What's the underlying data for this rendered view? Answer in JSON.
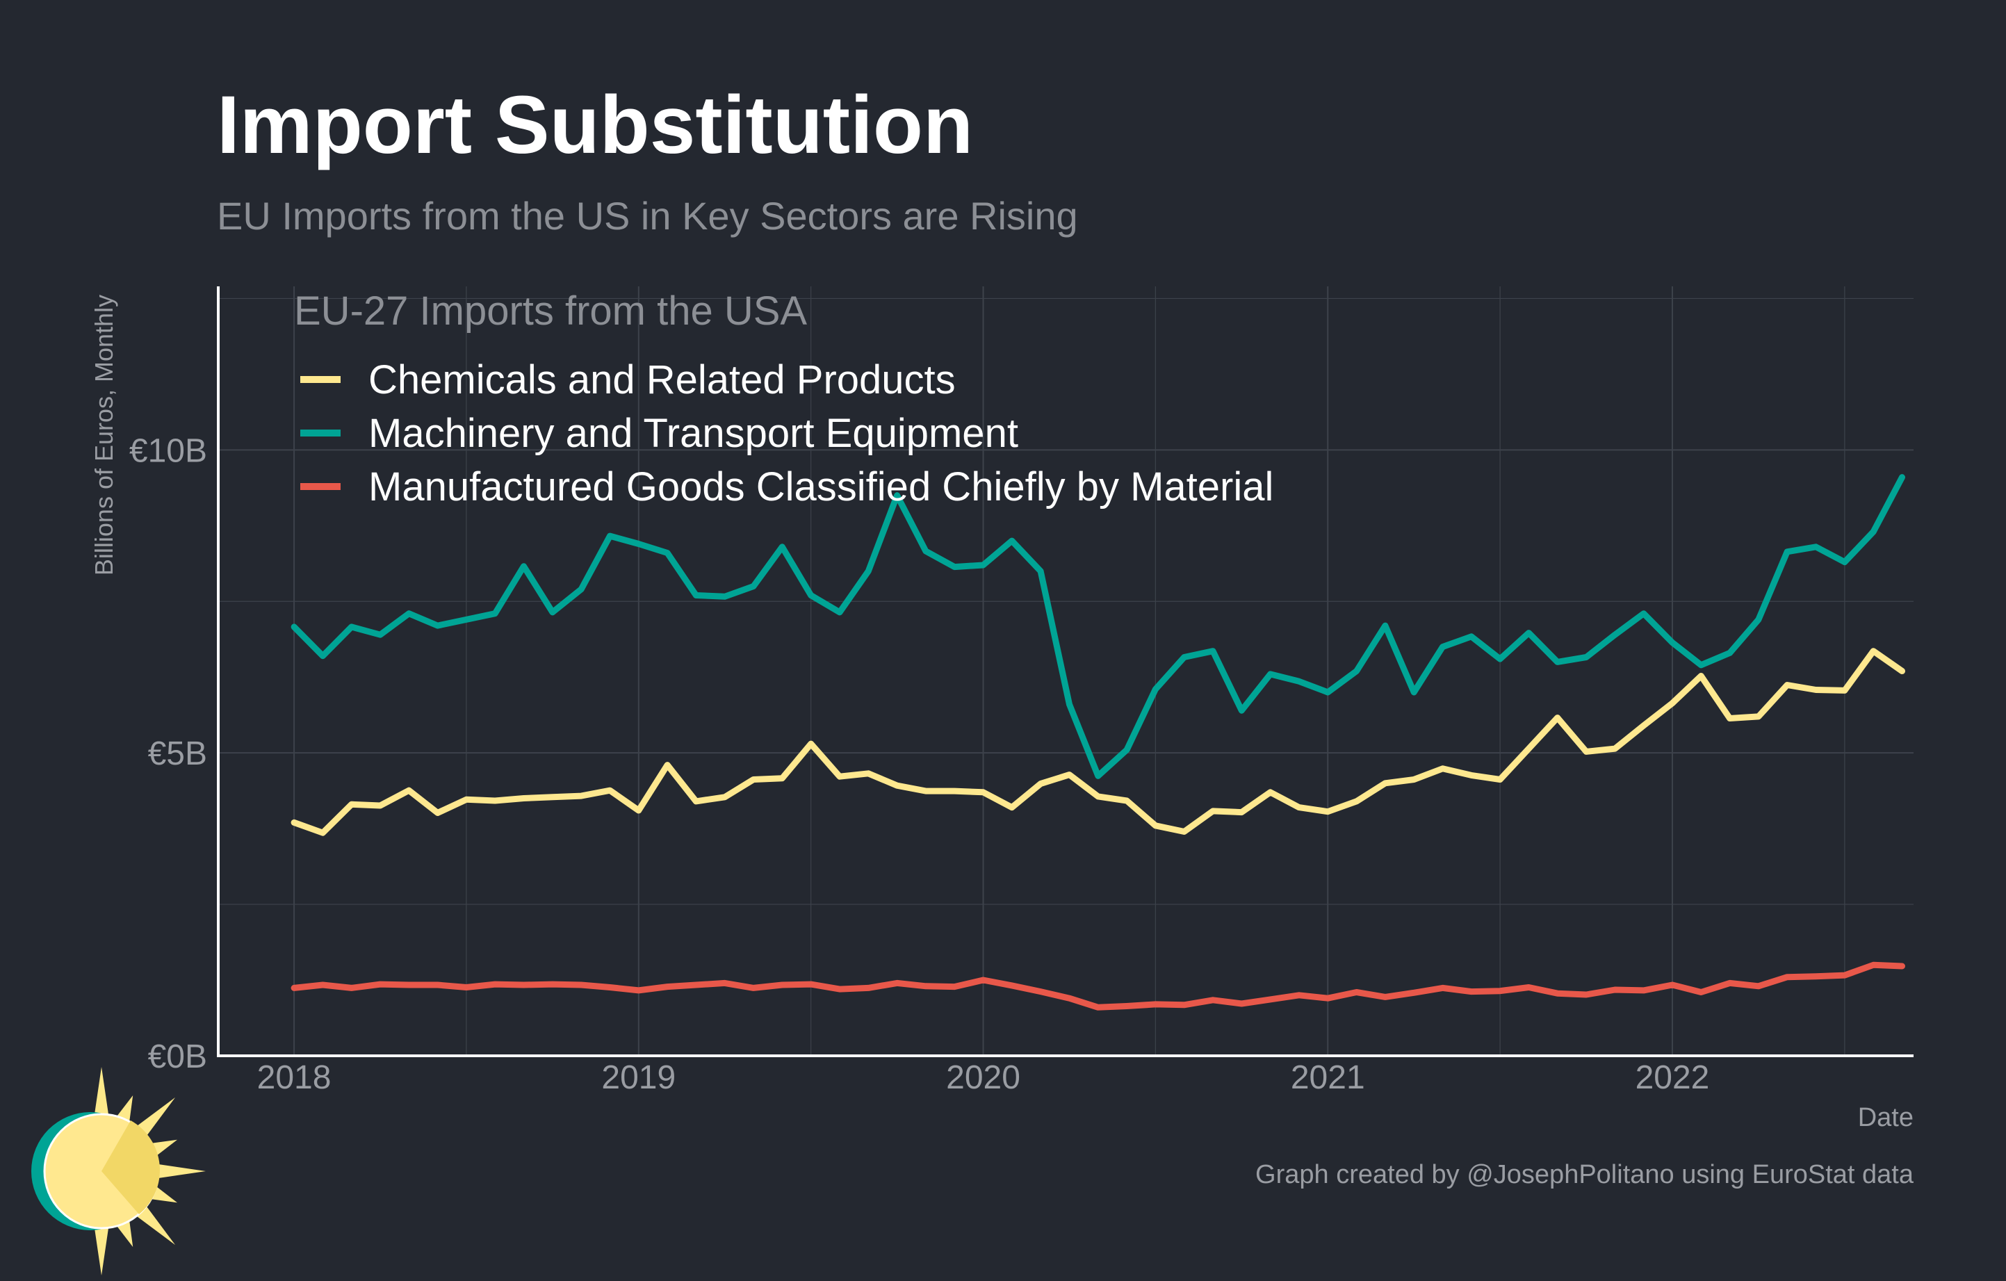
{
  "colors": {
    "background": "#242830",
    "title": "#ffffff",
    "subtitle": "#8c8f95",
    "axis_text": "#9a9da3",
    "grid": "#3d424b",
    "axis_line": "#ffffff",
    "chemicals": "#fee88f",
    "machinery": "#00a495",
    "manufactured": "#e8584a",
    "logo_sun": "#fde98a",
    "logo_ring": "#00a495"
  },
  "chart_data": {
    "type": "line",
    "title": "Import Substitution",
    "subtitle": "EU Imports from the US in Key Sectors are Rising",
    "legend_title": "EU-27 Imports from the USA",
    "legend_position": "top-left",
    "xlabel": "Date",
    "ylabel": "Billions of Euros, Monthly",
    "caption": "Graph created by @JosephPolitano using EuroStat data",
    "x_start": 2018.0,
    "x_step_months": 1,
    "xlim": [
      2017.78,
      2022.7
    ],
    "ylim": [
      0,
      12.7
    ],
    "x_ticks": [
      2018,
      2019,
      2020,
      2021,
      2022
    ],
    "x_tick_labels": [
      "2018",
      "2019",
      "2020",
      "2021",
      "2022"
    ],
    "y_ticks": [
      0,
      5,
      10
    ],
    "y_tick_labels": [
      "€0B",
      "€5B",
      "€10B"
    ],
    "y_minor_grid": [
      2.5,
      7.5,
      12.5
    ],
    "grid": true,
    "series": [
      {
        "key": "chemicals",
        "name": "Chemicals and Related Products",
        "values": [
          3.85,
          3.68,
          4.15,
          4.13,
          4.38,
          4.01,
          4.23,
          4.21,
          4.25,
          4.27,
          4.29,
          4.38,
          4.05,
          4.8,
          4.2,
          4.27,
          4.56,
          4.58,
          5.15,
          4.61,
          4.66,
          4.46,
          4.37,
          4.37,
          4.35,
          4.1,
          4.49,
          4.64,
          4.28,
          4.21,
          3.8,
          3.7,
          4.04,
          4.02,
          4.35,
          4.1,
          4.03,
          4.2,
          4.5,
          4.56,
          4.74,
          4.63,
          4.56,
          5.07,
          5.58,
          5.02,
          5.07,
          5.45,
          5.82,
          6.27,
          5.57,
          5.6,
          6.12,
          6.04,
          6.03,
          6.68,
          6.35
        ]
      },
      {
        "key": "machinery",
        "name": "Machinery and Transport Equipment",
        "values": [
          7.08,
          6.6,
          7.08,
          6.95,
          7.3,
          7.1,
          7.2,
          7.3,
          8.08,
          7.32,
          7.7,
          8.58,
          8.45,
          8.3,
          7.6,
          7.58,
          7.75,
          8.4,
          7.6,
          7.32,
          8.0,
          9.25,
          8.33,
          8.07,
          8.1,
          8.5,
          8.0,
          5.8,
          4.62,
          5.05,
          6.05,
          6.58,
          6.68,
          5.7,
          6.3,
          6.18,
          6.0,
          6.35,
          7.1,
          6.0,
          6.75,
          6.92,
          6.55,
          6.98,
          6.5,
          6.58,
          6.95,
          7.3,
          6.82,
          6.45,
          6.65,
          7.2,
          8.32,
          8.4,
          8.15,
          8.65,
          9.55
        ]
      },
      {
        "key": "manufactured",
        "name": "Manufactured Goods Classified Chiefly by Material",
        "values": [
          1.12,
          1.17,
          1.12,
          1.18,
          1.17,
          1.17,
          1.13,
          1.18,
          1.17,
          1.18,
          1.17,
          1.13,
          1.08,
          1.14,
          1.17,
          1.2,
          1.12,
          1.17,
          1.18,
          1.1,
          1.12,
          1.2,
          1.15,
          1.14,
          1.25,
          1.16,
          1.06,
          0.95,
          0.8,
          0.82,
          0.85,
          0.84,
          0.92,
          0.86,
          0.93,
          1.0,
          0.95,
          1.05,
          0.97,
          1.04,
          1.12,
          1.06,
          1.07,
          1.13,
          1.03,
          1.01,
          1.09,
          1.08,
          1.17,
          1.05,
          1.2,
          1.15,
          1.3,
          1.31,
          1.33,
          1.5,
          1.48
        ]
      }
    ]
  }
}
